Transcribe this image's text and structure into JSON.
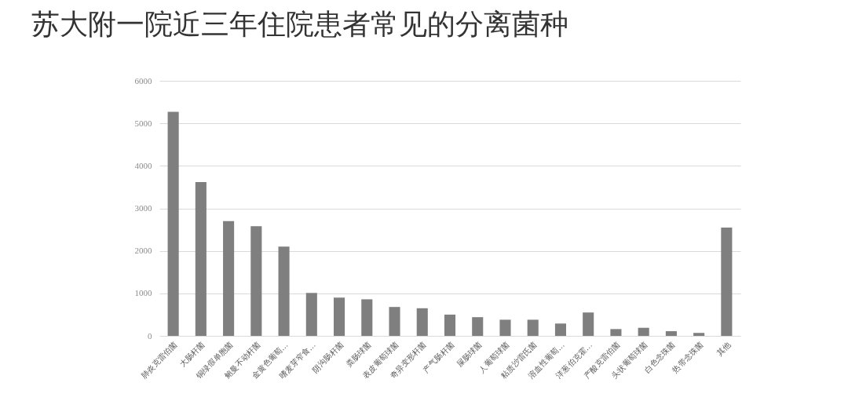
{
  "chart_data": {
    "type": "bar",
    "title": "苏大附一院近三年住院患者常见的分离菌种",
    "categories": [
      "肺炎克雷伯菌",
      "大肠杆菌",
      "铜绿假单胞菌",
      "鲍曼不动杆菌",
      "金黄色葡萄…",
      "嗜麦芽窄食…",
      "阴沟肠杆菌",
      "粪肠球菌",
      "表皮葡萄球菌",
      "奇异变形杆菌",
      "产气肠杆菌",
      "屎肠球菌",
      "人葡萄球菌",
      "粘质沙雷氏菌",
      "溶血性葡萄…",
      "洋葱伯克霍…",
      "产酸克雷伯菌",
      "头状葡萄球菌",
      "白色念珠菌",
      "热带念珠菌",
      "其他"
    ],
    "values": [
      5270,
      3620,
      2700,
      2580,
      2100,
      1010,
      900,
      860,
      680,
      650,
      500,
      440,
      380,
      380,
      290,
      550,
      160,
      190,
      110,
      70,
      2550
    ],
    "color": "#7f7f7f",
    "ylim": [
      0,
      6000
    ],
    "yticks": [
      0,
      1000,
      2000,
      3000,
      4000,
      5000,
      6000
    ],
    "grid": "y"
  }
}
